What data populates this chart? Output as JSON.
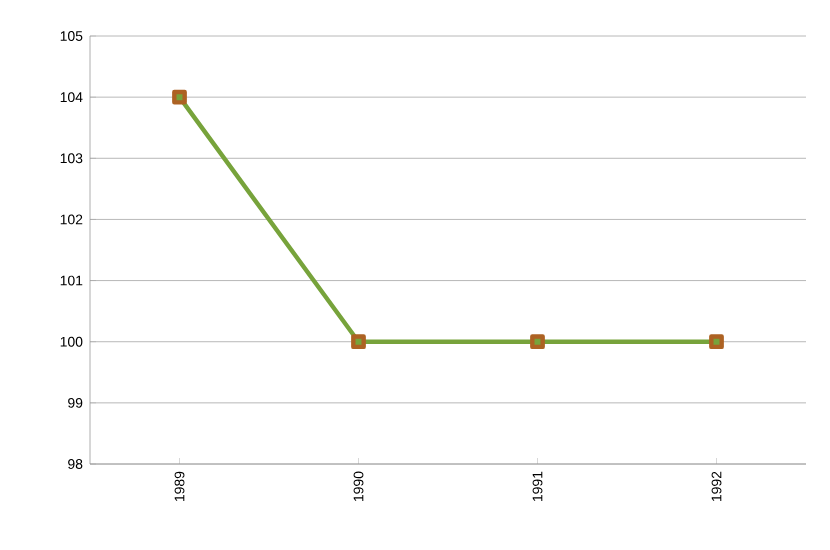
{
  "chart_data": {
    "type": "line",
    "categories": [
      "1989",
      "1990",
      "1991",
      "1992"
    ],
    "series": [
      {
        "color": "#77a33b",
        "values": [
          104,
          100,
          100,
          100
        ]
      }
    ],
    "ylim": [
      98,
      105
    ],
    "yticks": [
      98,
      99,
      100,
      101,
      102,
      103,
      104,
      105
    ],
    "grid": "y",
    "marker": "square",
    "line_style": "solid"
  }
}
